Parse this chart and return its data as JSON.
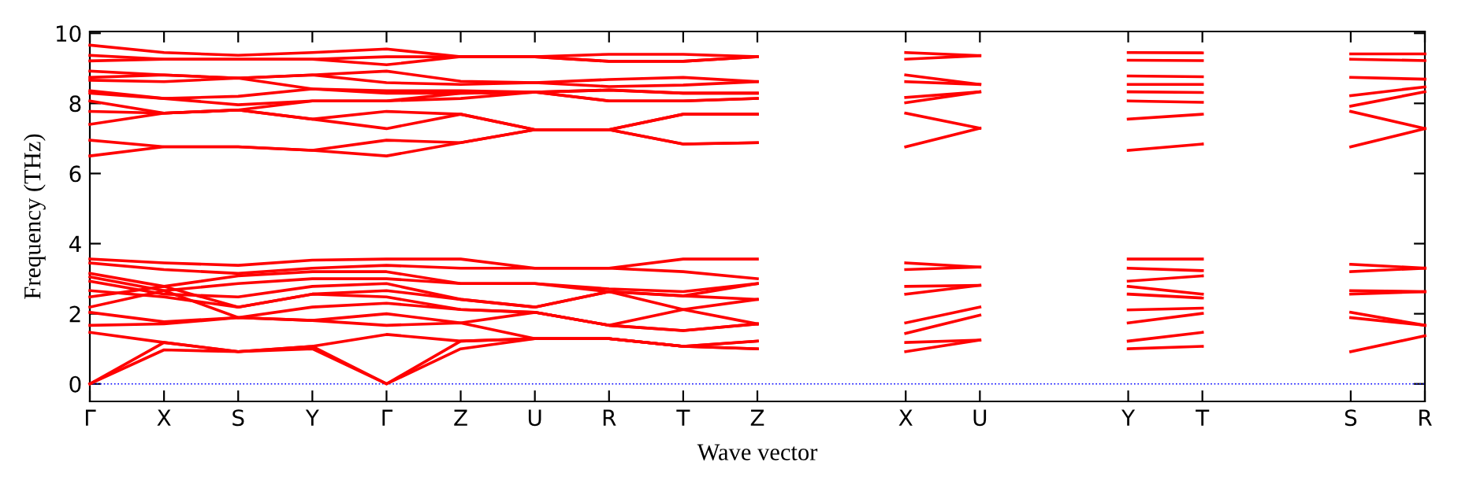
{
  "chart_data": {
    "type": "line",
    "ylabel": "Frequency (THz)",
    "xlabel": "Wave vector",
    "grid": false,
    "line_style": "solid",
    "marker": "none",
    "categories": [
      "Γ",
      "X",
      "S",
      "Y",
      "Γ",
      "Z",
      "U",
      "R",
      "T",
      "Z",
      null,
      "X",
      "U",
      null,
      "Y",
      "T",
      null,
      "S",
      "R"
    ],
    "ylim": [
      -0.5,
      10.05
    ],
    "yticks": [
      0,
      2,
      4,
      6,
      8,
      10
    ],
    "ref_lines": [
      {
        "axis": "y",
        "value": 0,
        "color": "#0000ff",
        "line_style": "dotted"
      }
    ],
    "series": [
      {
        "color": "#ff0000",
        "values": [
          9.66,
          9.45,
          9.37,
          9.45,
          9.55,
          9.33,
          9.33,
          9.4,
          9.4,
          9.33,
          null,
          null,
          null,
          null,
          null,
          null,
          null,
          null,
          null
        ]
      },
      {
        "color": "#ff0000",
        "values": [
          9.37,
          9.26,
          9.26,
          9.26,
          9.33,
          9.33,
          9.33,
          9.2,
          9.2,
          9.33,
          null,
          null,
          null,
          null,
          null,
          null,
          null,
          null,
          null
        ]
      },
      {
        "color": "#ff0000",
        "values": [
          9.21,
          9.26,
          9.26,
          9.26,
          9.1,
          9.33,
          9.33,
          9.2,
          9.2,
          9.33,
          null,
          null,
          null,
          null,
          null,
          null,
          null,
          null,
          null
        ]
      },
      {
        "color": "#ff0000",
        "values": [
          8.92,
          8.81,
          8.72,
          8.81,
          8.92,
          8.63,
          8.59,
          8.68,
          8.74,
          8.62,
          null,
          null,
          null,
          null,
          null,
          null,
          null,
          null,
          null
        ]
      },
      {
        "color": "#ff0000",
        "values": [
          8.74,
          8.81,
          8.72,
          8.81,
          8.59,
          8.54,
          8.59,
          8.48,
          8.52,
          8.62,
          null,
          null,
          null,
          null,
          null,
          null,
          null,
          null,
          null
        ]
      },
      {
        "color": "#ff0000",
        "values": [
          8.66,
          8.62,
          8.72,
          8.41,
          8.36,
          8.36,
          8.32,
          8.38,
          8.29,
          8.29,
          null,
          null,
          null,
          null,
          null,
          null,
          null,
          null,
          null
        ]
      },
      {
        "color": "#ff0000",
        "values": [
          8.36,
          8.14,
          8.2,
          8.41,
          8.29,
          8.29,
          8.32,
          8.38,
          8.29,
          8.29,
          null,
          null,
          null,
          null,
          null,
          null,
          null,
          null,
          null
        ]
      },
      {
        "color": "#ff0000",
        "values": [
          8.29,
          8.14,
          7.96,
          8.07,
          8.07,
          8.29,
          8.32,
          8.07,
          8.07,
          8.14,
          null,
          null,
          null,
          null,
          null,
          null,
          null,
          null,
          null
        ]
      },
      {
        "color": "#ff0000",
        "values": [
          8.07,
          7.72,
          7.81,
          8.07,
          8.07,
          8.14,
          8.32,
          8.07,
          8.07,
          8.14,
          null,
          null,
          null,
          null,
          null,
          null,
          null,
          null,
          null
        ]
      },
      {
        "color": "#ff0000",
        "values": [
          7.77,
          7.72,
          7.81,
          7.55,
          7.77,
          7.69,
          7.25,
          7.25,
          7.69,
          7.69,
          null,
          null,
          null,
          null,
          null,
          null,
          null,
          null,
          null
        ]
      },
      {
        "color": "#ff0000",
        "values": [
          7.4,
          7.72,
          7.81,
          7.55,
          7.28,
          7.69,
          7.25,
          7.25,
          7.69,
          7.69,
          null,
          null,
          null,
          null,
          null,
          null,
          null,
          null,
          null
        ]
      },
      {
        "color": "#ff0000",
        "values": [
          6.95,
          6.76,
          6.76,
          6.66,
          6.95,
          6.88,
          7.25,
          7.25,
          6.84,
          6.88,
          null,
          null,
          null,
          null,
          null,
          null,
          null,
          null,
          null
        ]
      },
      {
        "color": "#ff0000",
        "values": [
          6.5,
          6.76,
          6.76,
          6.66,
          6.5,
          6.88,
          7.25,
          7.25,
          6.84,
          6.88,
          null,
          null,
          null,
          null,
          null,
          null,
          null,
          null,
          null
        ]
      },
      {
        "color": "#ff0000",
        "values": [
          3.56,
          3.45,
          3.38,
          3.53,
          3.56,
          3.56,
          3.3,
          3.3,
          3.56,
          3.56,
          null,
          null,
          null,
          null,
          null,
          null,
          null,
          null,
          null
        ]
      },
      {
        "color": "#ff0000",
        "values": [
          3.45,
          3.26,
          3.15,
          3.3,
          3.38,
          3.3,
          3.3,
          3.3,
          3.2,
          3.0,
          null,
          null,
          null,
          null,
          null,
          null,
          null,
          null,
          null
        ]
      },
      {
        "color": "#ff0000",
        "values": [
          3.15,
          2.78,
          3.08,
          3.2,
          3.2,
          2.86,
          2.86,
          2.71,
          2.63,
          2.86,
          null,
          null,
          null,
          null,
          null,
          null,
          null,
          null,
          null
        ]
      },
      {
        "color": "#ff0000",
        "values": [
          3.05,
          2.66,
          2.86,
          3.0,
          3.0,
          2.86,
          2.86,
          2.63,
          2.51,
          2.86,
          null,
          null,
          null,
          null,
          null,
          null,
          null,
          null,
          null
        ]
      },
      {
        "color": "#ff0000",
        "values": [
          2.93,
          2.56,
          2.48,
          2.78,
          2.86,
          2.41,
          2.19,
          2.63,
          2.51,
          2.41,
          null,
          null,
          null,
          null,
          null,
          null,
          null,
          null,
          null
        ]
      },
      {
        "color": "#ff0000",
        "values": [
          2.66,
          2.48,
          2.19,
          2.56,
          2.66,
          2.41,
          2.19,
          2.63,
          2.12,
          2.41,
          null,
          null,
          null,
          null,
          null,
          null,
          null,
          null,
          null
        ]
      },
      {
        "color": "#ff0000",
        "values": [
          2.48,
          2.78,
          2.19,
          2.56,
          2.48,
          2.12,
          2.04,
          1.67,
          2.12,
          1.71,
          null,
          null,
          null,
          null,
          null,
          null,
          null,
          null,
          null
        ]
      },
      {
        "color": "#ff0000",
        "values": [
          2.19,
          2.66,
          1.89,
          2.19,
          2.3,
          2.12,
          2.04,
          1.67,
          1.52,
          1.71,
          null,
          null,
          null,
          null,
          null,
          null,
          null,
          null,
          null
        ]
      },
      {
        "color": "#ff0000",
        "values": [
          2.04,
          1.77,
          1.89,
          1.81,
          2.0,
          1.74,
          2.04,
          1.67,
          1.52,
          1.71,
          null,
          null,
          null,
          null,
          null,
          null,
          null,
          null,
          null
        ]
      },
      {
        "color": "#ff0000",
        "values": [
          1.67,
          1.71,
          1.89,
          1.81,
          1.67,
          1.74,
          1.29,
          1.29,
          1.07,
          1.22,
          null,
          null,
          null,
          null,
          null,
          null,
          null,
          null,
          null
        ]
      },
      {
        "color": "#ff0000",
        "values": [
          1.47,
          1.18,
          0.92,
          1.07,
          1.41,
          1.22,
          1.29,
          1.29,
          1.07,
          1.0,
          null,
          null,
          null,
          null,
          null,
          null,
          null,
          null,
          null
        ]
      },
      {
        "color": "#ff0000",
        "values": [
          0,
          1.18,
          0.92,
          1.07,
          0,
          1.22,
          1.29,
          1.29,
          1.07,
          1.22,
          null,
          null,
          null,
          null,
          null,
          null,
          null,
          null,
          null
        ]
      },
      {
        "color": "#ff0000",
        "values": [
          0,
          0.97,
          0.92,
          1.0,
          0,
          1.0,
          1.29,
          1.29,
          1.07,
          1.0,
          null,
          null,
          null,
          null,
          null,
          null,
          null,
          null,
          null
        ]
      },
      {
        "color": "#ff0000",
        "values": [
          null,
          null,
          null,
          null,
          null,
          null,
          null,
          null,
          null,
          null,
          null,
          9.45,
          9.36,
          null,
          null,
          null,
          null,
          null,
          null
        ]
      },
      {
        "color": "#ff0000",
        "values": [
          null,
          null,
          null,
          null,
          null,
          null,
          null,
          null,
          null,
          null,
          null,
          9.26,
          9.36,
          null,
          null,
          null,
          null,
          null,
          null
        ]
      },
      {
        "color": "#ff0000",
        "values": [
          null,
          null,
          null,
          null,
          null,
          null,
          null,
          null,
          null,
          null,
          null,
          8.81,
          8.54,
          null,
          null,
          null,
          null,
          null,
          null
        ]
      },
      {
        "color": "#ff0000",
        "values": [
          null,
          null,
          null,
          null,
          null,
          null,
          null,
          null,
          null,
          null,
          null,
          8.62,
          8.54,
          null,
          null,
          null,
          null,
          null,
          null
        ]
      },
      {
        "color": "#ff0000",
        "values": [
          null,
          null,
          null,
          null,
          null,
          null,
          null,
          null,
          null,
          null,
          null,
          8.17,
          8.33,
          null,
          null,
          null,
          null,
          null,
          null
        ]
      },
      {
        "color": "#ff0000",
        "values": [
          null,
          null,
          null,
          null,
          null,
          null,
          null,
          null,
          null,
          null,
          null,
          8.02,
          8.33,
          null,
          null,
          null,
          null,
          null,
          null
        ]
      },
      {
        "color": "#ff0000",
        "values": [
          null,
          null,
          null,
          null,
          null,
          null,
          null,
          null,
          null,
          null,
          null,
          7.72,
          7.29,
          null,
          null,
          null,
          null,
          null,
          null
        ]
      },
      {
        "color": "#ff0000",
        "values": [
          null,
          null,
          null,
          null,
          null,
          null,
          null,
          null,
          null,
          null,
          null,
          6.76,
          7.29,
          null,
          null,
          null,
          null,
          null,
          null
        ]
      },
      {
        "color": "#ff0000",
        "values": [
          null,
          null,
          null,
          null,
          null,
          null,
          null,
          null,
          null,
          null,
          null,
          3.45,
          3.33,
          null,
          null,
          null,
          null,
          null,
          null
        ]
      },
      {
        "color": "#ff0000",
        "values": [
          null,
          null,
          null,
          null,
          null,
          null,
          null,
          null,
          null,
          null,
          null,
          3.26,
          3.33,
          null,
          null,
          null,
          null,
          null,
          null
        ]
      },
      {
        "color": "#ff0000",
        "values": [
          null,
          null,
          null,
          null,
          null,
          null,
          null,
          null,
          null,
          null,
          null,
          2.78,
          2.81,
          null,
          null,
          null,
          null,
          null,
          null
        ]
      },
      {
        "color": "#ff0000",
        "values": [
          null,
          null,
          null,
          null,
          null,
          null,
          null,
          null,
          null,
          null,
          null,
          2.56,
          2.81,
          null,
          null,
          null,
          null,
          null,
          null
        ]
      },
      {
        "color": "#ff0000",
        "values": [
          null,
          null,
          null,
          null,
          null,
          null,
          null,
          null,
          null,
          null,
          null,
          1.74,
          2.19,
          null,
          null,
          null,
          null,
          null,
          null
        ]
      },
      {
        "color": "#ff0000",
        "values": [
          null,
          null,
          null,
          null,
          null,
          null,
          null,
          null,
          null,
          null,
          null,
          1.44,
          1.96,
          null,
          null,
          null,
          null,
          null,
          null
        ]
      },
      {
        "color": "#ff0000",
        "values": [
          null,
          null,
          null,
          null,
          null,
          null,
          null,
          null,
          null,
          null,
          null,
          1.18,
          1.25,
          null,
          null,
          null,
          null,
          null,
          null
        ]
      },
      {
        "color": "#ff0000",
        "values": [
          null,
          null,
          null,
          null,
          null,
          null,
          null,
          null,
          null,
          null,
          null,
          0.92,
          1.25,
          null,
          null,
          null,
          null,
          null,
          null
        ]
      },
      {
        "color": "#ff0000",
        "values": [
          null,
          null,
          null,
          null,
          null,
          null,
          null,
          null,
          null,
          null,
          null,
          null,
          null,
          null,
          9.45,
          9.44,
          null,
          null,
          null
        ]
      },
      {
        "color": "#ff0000",
        "values": [
          null,
          null,
          null,
          null,
          null,
          null,
          null,
          null,
          null,
          null,
          null,
          null,
          null,
          null,
          9.23,
          9.22,
          null,
          null,
          null
        ]
      },
      {
        "color": "#ff0000",
        "values": [
          null,
          null,
          null,
          null,
          null,
          null,
          null,
          null,
          null,
          null,
          null,
          null,
          null,
          null,
          8.78,
          8.76,
          null,
          null,
          null
        ]
      },
      {
        "color": "#ff0000",
        "values": [
          null,
          null,
          null,
          null,
          null,
          null,
          null,
          null,
          null,
          null,
          null,
          null,
          null,
          null,
          8.54,
          8.54,
          null,
          null,
          null
        ]
      },
      {
        "color": "#ff0000",
        "values": [
          null,
          null,
          null,
          null,
          null,
          null,
          null,
          null,
          null,
          null,
          null,
          null,
          null,
          null,
          8.33,
          8.31,
          null,
          null,
          null
        ]
      },
      {
        "color": "#ff0000",
        "values": [
          null,
          null,
          null,
          null,
          null,
          null,
          null,
          null,
          null,
          null,
          null,
          null,
          null,
          null,
          8.07,
          8.03,
          null,
          null,
          null
        ]
      },
      {
        "color": "#ff0000",
        "values": [
          null,
          null,
          null,
          null,
          null,
          null,
          null,
          null,
          null,
          null,
          null,
          null,
          null,
          null,
          7.55,
          7.69,
          null,
          null,
          null
        ]
      },
      {
        "color": "#ff0000",
        "values": [
          null,
          null,
          null,
          null,
          null,
          null,
          null,
          null,
          null,
          null,
          null,
          null,
          null,
          null,
          6.66,
          6.84,
          null,
          null,
          null
        ]
      },
      {
        "color": "#ff0000",
        "values": [
          null,
          null,
          null,
          null,
          null,
          null,
          null,
          null,
          null,
          null,
          null,
          null,
          null,
          null,
          3.56,
          3.56,
          null,
          null,
          null
        ]
      },
      {
        "color": "#ff0000",
        "values": [
          null,
          null,
          null,
          null,
          null,
          null,
          null,
          null,
          null,
          null,
          null,
          null,
          null,
          null,
          3.3,
          3.23,
          null,
          null,
          null
        ]
      },
      {
        "color": "#ff0000",
        "values": [
          null,
          null,
          null,
          null,
          null,
          null,
          null,
          null,
          null,
          null,
          null,
          null,
          null,
          null,
          2.93,
          3.08,
          null,
          null,
          null
        ]
      },
      {
        "color": "#ff0000",
        "values": [
          null,
          null,
          null,
          null,
          null,
          null,
          null,
          null,
          null,
          null,
          null,
          null,
          null,
          null,
          2.78,
          2.56,
          null,
          null,
          null
        ]
      },
      {
        "color": "#ff0000",
        "values": [
          null,
          null,
          null,
          null,
          null,
          null,
          null,
          null,
          null,
          null,
          null,
          null,
          null,
          null,
          2.56,
          2.45,
          null,
          null,
          null
        ]
      },
      {
        "color": "#ff0000",
        "values": [
          null,
          null,
          null,
          null,
          null,
          null,
          null,
          null,
          null,
          null,
          null,
          null,
          null,
          null,
          2.11,
          2.16,
          null,
          null,
          null
        ]
      },
      {
        "color": "#ff0000",
        "values": [
          null,
          null,
          null,
          null,
          null,
          null,
          null,
          null,
          null,
          null,
          null,
          null,
          null,
          null,
          1.74,
          2.01,
          null,
          null,
          null
        ]
      },
      {
        "color": "#ff0000",
        "values": [
          null,
          null,
          null,
          null,
          null,
          null,
          null,
          null,
          null,
          null,
          null,
          null,
          null,
          null,
          1.22,
          1.47,
          null,
          null,
          null
        ]
      },
      {
        "color": "#ff0000",
        "values": [
          null,
          null,
          null,
          null,
          null,
          null,
          null,
          null,
          null,
          null,
          null,
          null,
          null,
          null,
          1.0,
          1.07,
          null,
          null,
          null
        ]
      },
      {
        "color": "#ff0000",
        "values": [
          null,
          null,
          null,
          null,
          null,
          null,
          null,
          null,
          null,
          null,
          null,
          null,
          null,
          null,
          null,
          null,
          null,
          9.41,
          9.41
        ]
      },
      {
        "color": "#ff0000",
        "values": [
          null,
          null,
          null,
          null,
          null,
          null,
          null,
          null,
          null,
          null,
          null,
          null,
          null,
          null,
          null,
          null,
          null,
          9.26,
          9.22
        ]
      },
      {
        "color": "#ff0000",
        "values": [
          null,
          null,
          null,
          null,
          null,
          null,
          null,
          null,
          null,
          null,
          null,
          null,
          null,
          null,
          null,
          null,
          null,
          8.74,
          8.69
        ]
      },
      {
        "color": "#ff0000",
        "values": [
          null,
          null,
          null,
          null,
          null,
          null,
          null,
          null,
          null,
          null,
          null,
          null,
          null,
          null,
          null,
          null,
          null,
          8.22,
          8.47
        ]
      },
      {
        "color": "#ff0000",
        "values": [
          null,
          null,
          null,
          null,
          null,
          null,
          null,
          null,
          null,
          null,
          null,
          null,
          null,
          null,
          null,
          null,
          null,
          7.92,
          8.33
        ]
      },
      {
        "color": "#ff0000",
        "values": [
          null,
          null,
          null,
          null,
          null,
          null,
          null,
          null,
          null,
          null,
          null,
          null,
          null,
          null,
          null,
          null,
          null,
          7.77,
          7.28
        ]
      },
      {
        "color": "#ff0000",
        "values": [
          null,
          null,
          null,
          null,
          null,
          null,
          null,
          null,
          null,
          null,
          null,
          null,
          null,
          null,
          null,
          null,
          null,
          6.76,
          7.28
        ]
      },
      {
        "color": "#ff0000",
        "values": [
          null,
          null,
          null,
          null,
          null,
          null,
          null,
          null,
          null,
          null,
          null,
          null,
          null,
          null,
          null,
          null,
          null,
          3.41,
          3.3
        ]
      },
      {
        "color": "#ff0000",
        "values": [
          null,
          null,
          null,
          null,
          null,
          null,
          null,
          null,
          null,
          null,
          null,
          null,
          null,
          null,
          null,
          null,
          null,
          3.2,
          3.3
        ]
      },
      {
        "color": "#ff0000",
        "values": [
          null,
          null,
          null,
          null,
          null,
          null,
          null,
          null,
          null,
          null,
          null,
          null,
          null,
          null,
          null,
          null,
          null,
          2.66,
          2.63
        ]
      },
      {
        "color": "#ff0000",
        "values": [
          null,
          null,
          null,
          null,
          null,
          null,
          null,
          null,
          null,
          null,
          null,
          null,
          null,
          null,
          null,
          null,
          null,
          2.56,
          2.63
        ]
      },
      {
        "color": "#ff0000",
        "values": [
          null,
          null,
          null,
          null,
          null,
          null,
          null,
          null,
          null,
          null,
          null,
          null,
          null,
          null,
          null,
          null,
          null,
          2.04,
          1.67
        ]
      },
      {
        "color": "#ff0000",
        "values": [
          null,
          null,
          null,
          null,
          null,
          null,
          null,
          null,
          null,
          null,
          null,
          null,
          null,
          null,
          null,
          null,
          null,
          1.89,
          1.67
        ]
      },
      {
        "color": "#ff0000",
        "values": [
          null,
          null,
          null,
          null,
          null,
          null,
          null,
          null,
          null,
          null,
          null,
          null,
          null,
          null,
          null,
          null,
          null,
          0.92,
          1.37
        ]
      }
    ]
  }
}
